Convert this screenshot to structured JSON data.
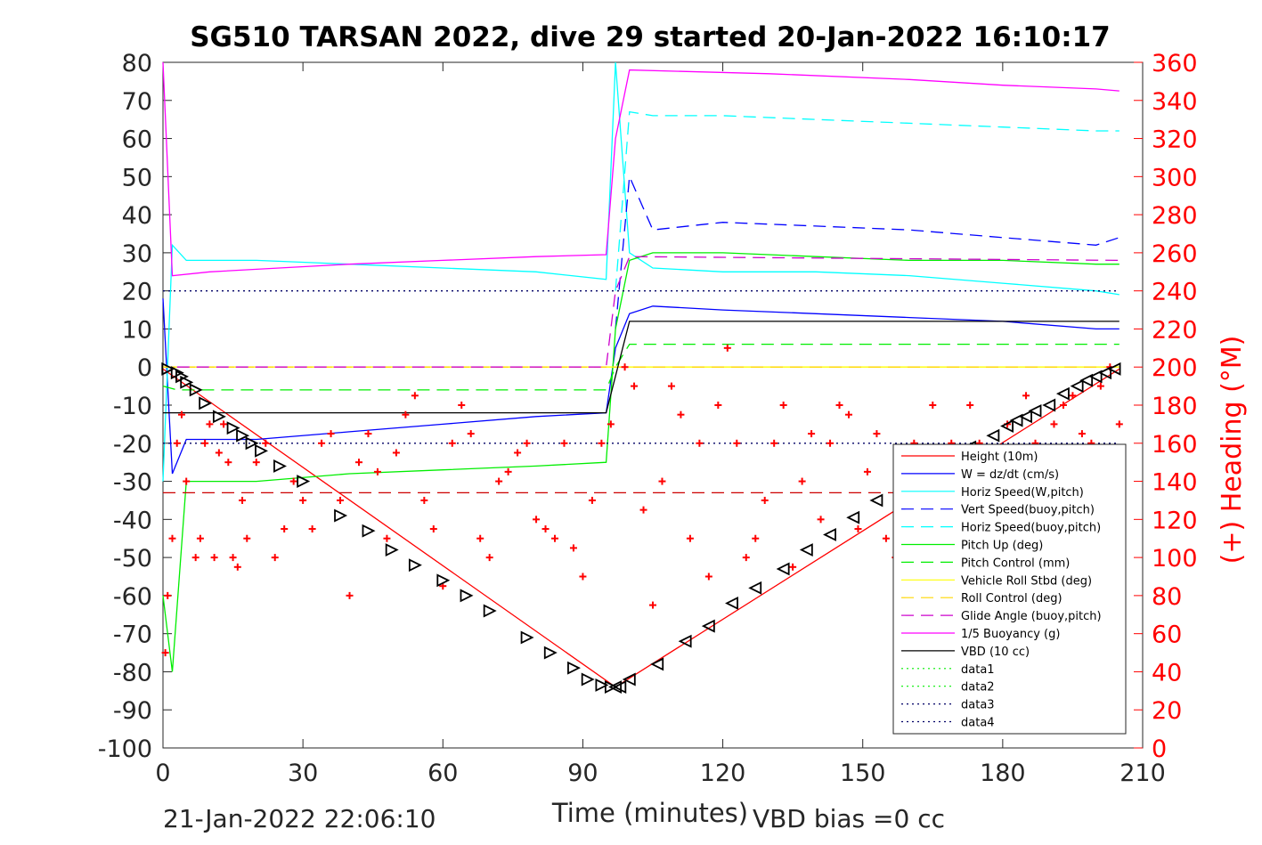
{
  "chart_data": {
    "type": "line",
    "title": "SG510 TARSAN 2022, dive 29 started 20-Jan-2022 16:10:17",
    "xlabel": "Time (minutes)",
    "ylabel_right": "(+) Heading (°M)",
    "xlim": [
      0,
      210
    ],
    "ylim": [
      -100,
      80
    ],
    "ylim_right": [
      0,
      360
    ],
    "x_ticks": [
      "0",
      "30",
      "60",
      "90",
      "120",
      "150",
      "180",
      "210"
    ],
    "y_ticks": [
      "80",
      "70",
      "60",
      "50",
      "40",
      "30",
      "20",
      "10",
      "0",
      "-10",
      "-20",
      "-30",
      "-40",
      "-50",
      "-60",
      "-70",
      "-80",
      "-90",
      "-100"
    ],
    "y_right_ticks": [
      "360",
      "340",
      "320",
      "300",
      "280",
      "260",
      "240",
      "220",
      "200",
      "180",
      "160",
      "140",
      "120",
      "100",
      "80",
      "60",
      "40",
      "20",
      "0"
    ],
    "footer_left": "21-Jan-2022 22:06:10",
    "footer_right": "VBD bias =0 cc",
    "legend_position": "bottom-right",
    "colors": {
      "red": "#ff0000",
      "blue": "#0000ff",
      "cyan": "#00ffff",
      "dark_blue": "#0000cc",
      "green": "#00ee00",
      "yellow": "#ffff00",
      "magenta": "#ff00ff",
      "black": "#000000"
    },
    "series": [
      {
        "name": "Height (10m)",
        "color": "#ff0000",
        "style": "solid",
        "x": [
          0,
          97,
          205
        ],
        "y": [
          -0.5,
          -84,
          -0.5
        ]
      },
      {
        "name": "W = dz/dt (cm/s)",
        "color": "#0000ff",
        "style": "solid",
        "x": [
          0,
          2,
          5,
          20,
          40,
          60,
          80,
          95,
          97,
          100,
          105,
          120,
          140,
          160,
          180,
          200,
          205
        ],
        "y": [
          18,
          -28,
          -19,
          -19,
          -17,
          -15,
          -13,
          -12,
          5,
          14,
          16,
          15,
          14,
          13,
          12,
          10,
          10
        ]
      },
      {
        "name": "Horiz Speed(W,pitch)",
        "color": "#00ffff",
        "style": "solid",
        "x": [
          0,
          2,
          5,
          20,
          40,
          60,
          80,
          95,
          97,
          100,
          105,
          120,
          140,
          160,
          180,
          200,
          205
        ],
        "y": [
          -30,
          32,
          28,
          28,
          27,
          26,
          25,
          23,
          80,
          30,
          26,
          25,
          25,
          24,
          22,
          20,
          19
        ]
      },
      {
        "name": "Vert Speed(buoy,pitch)",
        "color": "#0000ff",
        "style": "dashed",
        "x": [
          97,
          100,
          105,
          120,
          140,
          160,
          180,
          200,
          205
        ],
        "y": [
          10,
          50,
          36,
          38,
          37,
          36,
          34,
          32,
          34
        ]
      },
      {
        "name": "Horiz Speed(buoy,pitch)",
        "color": "#00ffff",
        "style": "dashed",
        "x": [
          97,
          100,
          105,
          120,
          140,
          160,
          180,
          200,
          205
        ],
        "y": [
          20,
          67,
          66,
          66,
          65,
          64,
          63,
          62,
          62
        ]
      },
      {
        "name": "Pitch Up (deg)",
        "color": "#00ee00",
        "style": "solid",
        "x": [
          0,
          2,
          5,
          20,
          40,
          60,
          80,
          95,
          97,
          100,
          105,
          120,
          140,
          160,
          180,
          200,
          205
        ],
        "y": [
          -60,
          -80,
          -30,
          -30,
          -28,
          -27,
          -26,
          -25,
          10,
          28,
          30,
          30,
          29,
          28,
          28,
          27,
          27
        ]
      },
      {
        "name": "Pitch Control (mm)",
        "color": "#00ee00",
        "style": "dashed",
        "x": [
          0,
          3,
          95,
          97,
          100,
          205
        ],
        "y": [
          -5,
          -6,
          -6,
          0,
          6,
          6
        ]
      },
      {
        "name": "Vehicle Roll Stbd (deg)",
        "color": "#ffff00",
        "style": "solid",
        "x": [
          0,
          205
        ],
        "y": [
          0,
          0
        ]
      },
      {
        "name": "Roll Control (deg)",
        "color": "#ffd700",
        "style": "dashed",
        "x": [
          0,
          205
        ],
        "y": [
          0,
          0
        ]
      },
      {
        "name": "Glide Angle (buoy,pitch)",
        "color": "#cc00cc",
        "style": "dashed",
        "x": [
          3,
          95,
          97,
          100,
          205
        ],
        "y": [
          0,
          0,
          20,
          29,
          28
        ]
      },
      {
        "name": "1/5 Buoyancy (g)",
        "color": "#ff00ff",
        "style": "solid",
        "x": [
          0,
          2,
          10,
          40,
          60,
          80,
          95,
          97,
          100,
          130,
          160,
          180,
          200,
          205
        ],
        "y": [
          80,
          24,
          25,
          27,
          28,
          29,
          29.5,
          60,
          78,
          77,
          75.5,
          74,
          73,
          72.5
        ]
      },
      {
        "name": "VBD (10 cc)",
        "color": "#000000",
        "style": "solid",
        "x": [
          0,
          95,
          100,
          205
        ],
        "y": [
          -12,
          -12,
          12,
          12
        ]
      },
      {
        "name": "data1",
        "color": "#00ee00",
        "style": "dotted",
        "x": [],
        "y": []
      },
      {
        "name": "data2",
        "color": "#00ee00",
        "style": "dotted",
        "x": [],
        "y": []
      },
      {
        "name": "data3",
        "color": "#000066",
        "style": "dotted",
        "x": [
          0,
          205
        ],
        "y": [
          20,
          20
        ]
      },
      {
        "name": "data4",
        "color": "#000066",
        "style": "dotted",
        "x": [
          0,
          205
        ],
        "y": [
          -20,
          -20
        ]
      }
    ],
    "extra_lines": [
      {
        "color": "#cc0000",
        "style": "dashed",
        "x": [
          0,
          205
        ],
        "y": [
          -33,
          -33
        ]
      }
    ],
    "heading_points": {
      "axis": "right",
      "marker": "+",
      "color": "#ff0000",
      "x": [
        0.5,
        1,
        2,
        3,
        4,
        5,
        7,
        8,
        9,
        10,
        11,
        12,
        13,
        14,
        15,
        16,
        17,
        18,
        20,
        22,
        24,
        26,
        28,
        30,
        32,
        34,
        36,
        38,
        40,
        42,
        44,
        46,
        48,
        50,
        52,
        54,
        56,
        58,
        60,
        62,
        64,
        66,
        68,
        70,
        72,
        74,
        76,
        78,
        80,
        82,
        84,
        86,
        88,
        90,
        92,
        94,
        96,
        99,
        101,
        103,
        105,
        107,
        109,
        111,
        113,
        115,
        117,
        119,
        121,
        123,
        125,
        127,
        129,
        131,
        133,
        135,
        137,
        139,
        141,
        143,
        145,
        147,
        149,
        151,
        153,
        155,
        157,
        159,
        161,
        163,
        165,
        167,
        169,
        171,
        173,
        175,
        177,
        179,
        181,
        183,
        185,
        187,
        189,
        191,
        193,
        195,
        197,
        199,
        201,
        203,
        205
      ],
      "y": [
        50,
        80,
        110,
        160,
        175,
        140,
        100,
        110,
        160,
        170,
        100,
        155,
        170,
        150,
        100,
        95,
        130,
        110,
        150,
        160,
        100,
        115,
        140,
        130,
        115,
        160,
        165,
        130,
        80,
        150,
        165,
        145,
        110,
        155,
        175,
        185,
        130,
        115,
        85,
        160,
        180,
        165,
        110,
        100,
        140,
        145,
        155,
        160,
        120,
        115,
        110,
        160,
        105,
        90,
        130,
        160,
        170,
        200,
        190,
        125,
        75,
        140,
        190,
        175,
        110,
        160,
        90,
        180,
        210,
        160,
        100,
        110,
        130,
        160,
        180,
        95,
        140,
        165,
        120,
        160,
        180,
        175,
        115,
        145,
        165,
        110,
        100,
        150,
        160,
        130,
        180,
        140,
        160,
        150,
        180,
        160,
        120,
        155,
        170,
        150,
        185,
        160,
        140,
        170,
        180,
        185,
        165,
        160,
        190,
        200,
        170
      ]
    },
    "depth_markers": {
      "marker": "triangle",
      "color": "#000000",
      "x": [
        1,
        3,
        4,
        5,
        7,
        9,
        12,
        15,
        17,
        19,
        21,
        25,
        30,
        38,
        44,
        49,
        54,
        60,
        65,
        70,
        78,
        83,
        88,
        91,
        94,
        96,
        97,
        98,
        100,
        106,
        112,
        117,
        122,
        127,
        133,
        138,
        143,
        148,
        153,
        158,
        163,
        168,
        173,
        178,
        181,
        183,
        185,
        187,
        190,
        193,
        196,
        198,
        200,
        202,
        204
      ],
      "y": [
        -0.5,
        -1.5,
        -2.5,
        -4,
        -6,
        -9.5,
        -13,
        -16,
        -18,
        -20,
        -22,
        -26,
        -30,
        -39,
        -43,
        -48,
        -52,
        -56,
        -60,
        -64,
        -71,
        -75,
        -79,
        -82,
        -83.5,
        -84,
        -84,
        -84,
        -82,
        -78,
        -72,
        -68,
        -62,
        -58,
        -53,
        -48,
        -44,
        -39.5,
        -35,
        -30.5,
        -27,
        -23.5,
        -21,
        -18,
        -15.5,
        -14,
        -13,
        -11.5,
        -10,
        -7,
        -5,
        -3.5,
        -2.5,
        -1.5,
        -0.5
      ]
    }
  }
}
